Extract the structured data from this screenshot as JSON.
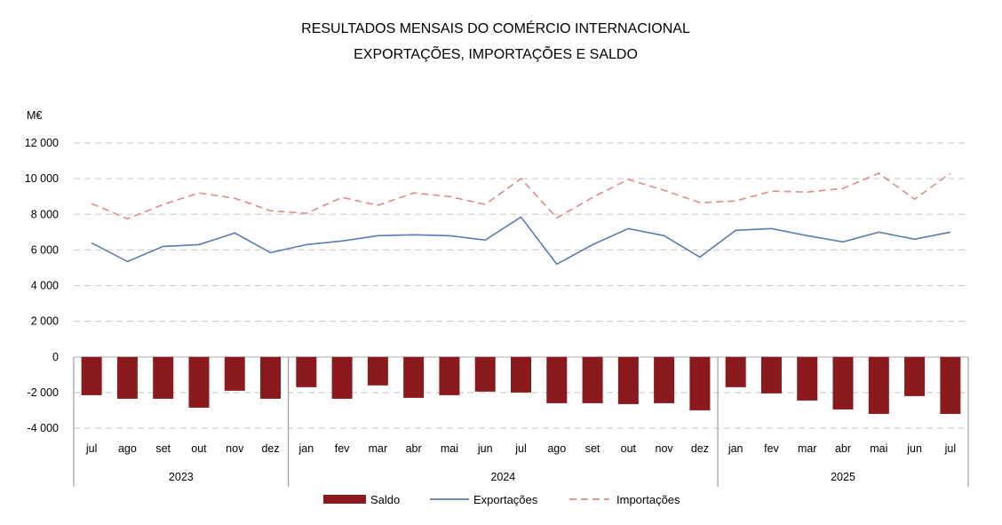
{
  "chart_data": {
    "type": "bar",
    "title": "RESULTADOS MENSAIS DO COMÉRCIO INTERNACIONAL",
    "subtitle": "EXPORTAÇÕES, IMPORTAÇÕES E SALDO",
    "ylabel": "M€",
    "ylim": [
      -4000,
      12000
    ],
    "yticks": [
      12000,
      10000,
      8000,
      6000,
      4000,
      2000,
      0,
      -2000,
      -4000
    ],
    "ytick_labels": [
      "12 000",
      "10 000",
      "8 000",
      "6 000",
      "4 000",
      "2 000",
      "0",
      "-2 000",
      "-4 000"
    ],
    "grid": true,
    "legend_position": "bottom",
    "categories": [
      "jul",
      "ago",
      "set",
      "out",
      "nov",
      "dez",
      "jan",
      "fev",
      "mar",
      "abr",
      "mai",
      "jun",
      "jul",
      "ago",
      "set",
      "out",
      "nov",
      "dez",
      "jan",
      "fev",
      "mar",
      "abr",
      "mai",
      "jun",
      "jul"
    ],
    "groups": [
      {
        "label": "2023",
        "count": 6
      },
      {
        "label": "2024",
        "count": 12
      },
      {
        "label": "2025",
        "count": 7
      }
    ],
    "series": [
      {
        "name": "Saldo",
        "kind": "bar",
        "color": "#8b1a1f",
        "values": [
          -2150,
          -2350,
          -2350,
          -2850,
          -1900,
          -2350,
          -1700,
          -2350,
          -1600,
          -2300,
          -2150,
          -1950,
          -2000,
          -2600,
          -2600,
          -2650,
          -2600,
          -3000,
          -1700,
          -2050,
          -2450,
          -2950,
          -3200,
          -2200,
          -3200
        ]
      },
      {
        "name": "Exportações",
        "kind": "line",
        "color": "#5b7bb2",
        "values": [
          6400,
          5350,
          6200,
          6300,
          6950,
          5850,
          6300,
          6500,
          6800,
          6850,
          6800,
          6550,
          7850,
          5200,
          6300,
          7200,
          6800,
          5600,
          7100,
          7200,
          6800,
          6450,
          7000,
          6600,
          7000
        ]
      },
      {
        "name": "Importações",
        "kind": "line",
        "color": "#e08a8a",
        "dash": true,
        "values": [
          8600,
          7750,
          8550,
          9200,
          8900,
          8200,
          8050,
          8950,
          8500,
          9200,
          9000,
          8550,
          10000,
          7800,
          8950,
          9950,
          9350,
          8650,
          8750,
          9300,
          9250,
          9450,
          10300,
          8850,
          10300
        ]
      }
    ]
  }
}
